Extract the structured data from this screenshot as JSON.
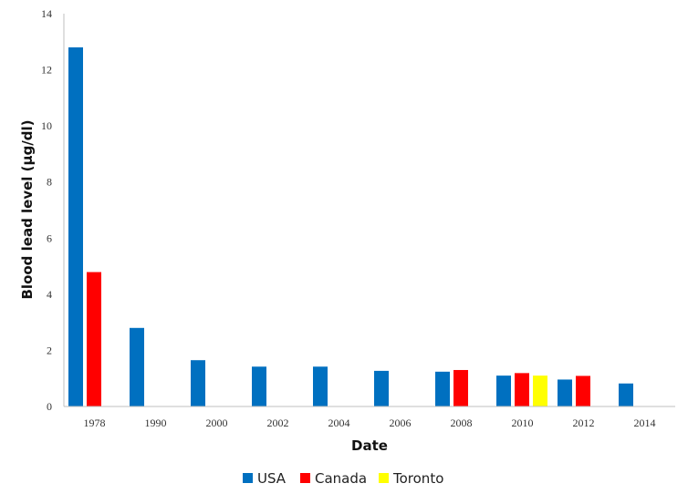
{
  "chart_data": {
    "type": "bar",
    "title": "",
    "xlabel": "Date",
    "ylabel": "Blood lead level (µg/dl)",
    "ylim": [
      0,
      14
    ],
    "yticks": [
      0,
      2,
      4,
      6,
      8,
      10,
      12,
      14
    ],
    "grid": false,
    "legend_position": "bottom",
    "categories": [
      "1978",
      "1990",
      "2000",
      "2002",
      "2004",
      "2006",
      "2008",
      "2010",
      "2012",
      "2014"
    ],
    "series": [
      {
        "name": "USA",
        "color": "#0070C0",
        "values": [
          12.8,
          2.8,
          1.65,
          1.42,
          1.42,
          1.27,
          1.24,
          1.1,
          0.96,
          0.82
        ]
      },
      {
        "name": "Canada",
        "color": "#FF0000",
        "values": [
          4.79,
          null,
          null,
          null,
          null,
          null,
          1.3,
          1.19,
          1.09,
          null
        ]
      },
      {
        "name": "Toronto",
        "color": "#FFFF00",
        "values": [
          null,
          null,
          null,
          null,
          null,
          null,
          null,
          1.1,
          null,
          null
        ]
      }
    ]
  }
}
